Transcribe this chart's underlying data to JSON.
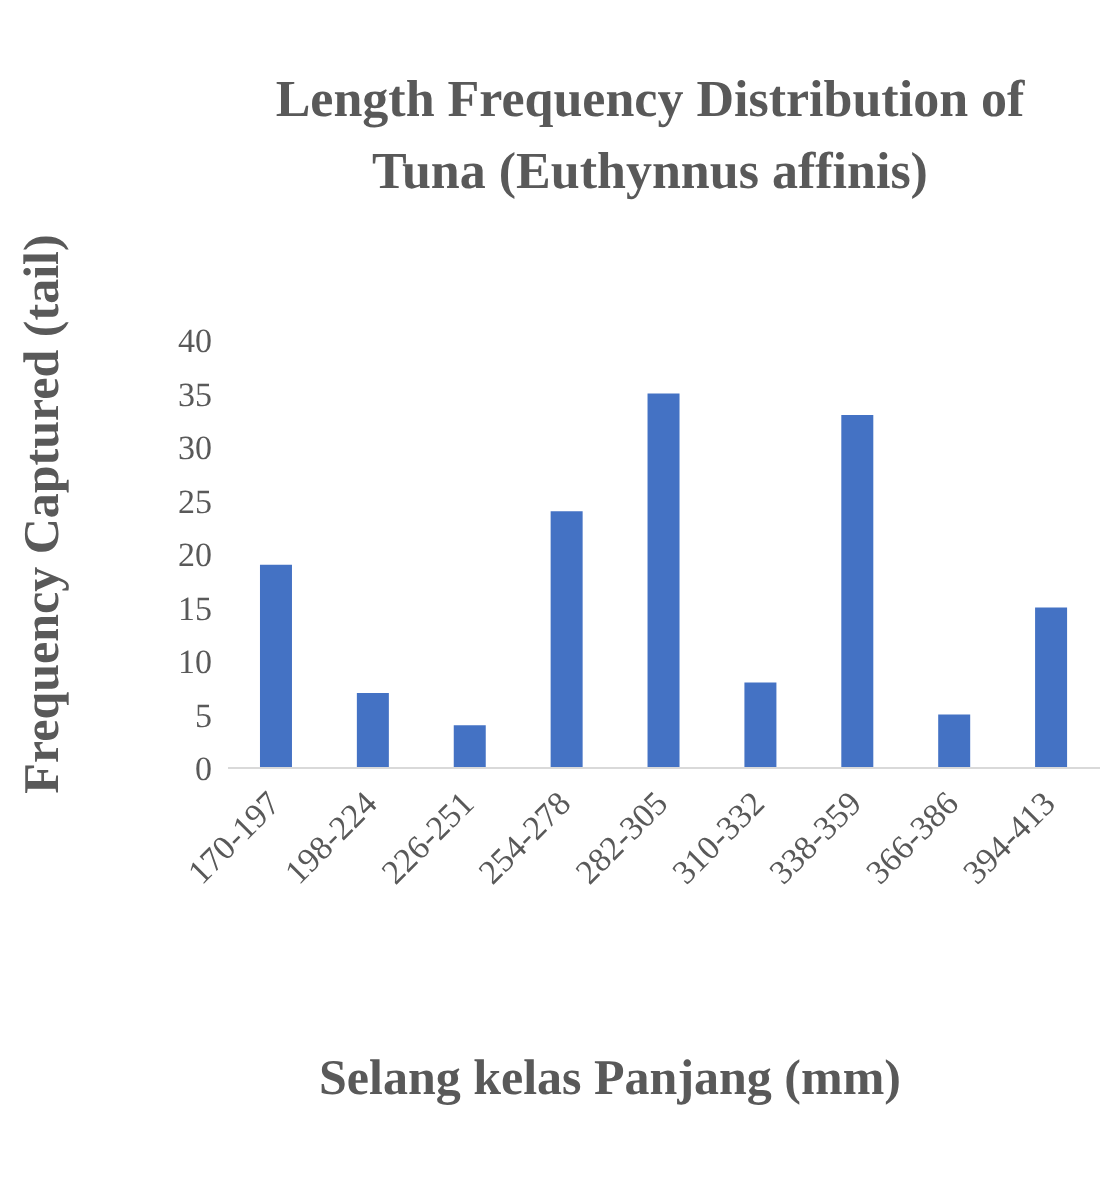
{
  "chart_data": {
    "type": "bar",
    "title": "Length Frequency Distribution of Tuna (Euthynnus affinis)",
    "xlabel": "Selang kelas Panjang (mm)",
    "ylabel": "Frequency Captured (tail)",
    "categories": [
      "170-197",
      "198-224",
      "226-251",
      "254-278",
      "282-305",
      "310-332",
      "338-359",
      "366-386",
      "394-413"
    ],
    "values": [
      19,
      7,
      4,
      24,
      35,
      8,
      33,
      5,
      15
    ],
    "color": "#4472c4",
    "ylim": [
      0,
      40
    ],
    "yticks": [
      0,
      5,
      10,
      15,
      20,
      25,
      30,
      35,
      40
    ],
    "grid": false,
    "legend": false
  }
}
